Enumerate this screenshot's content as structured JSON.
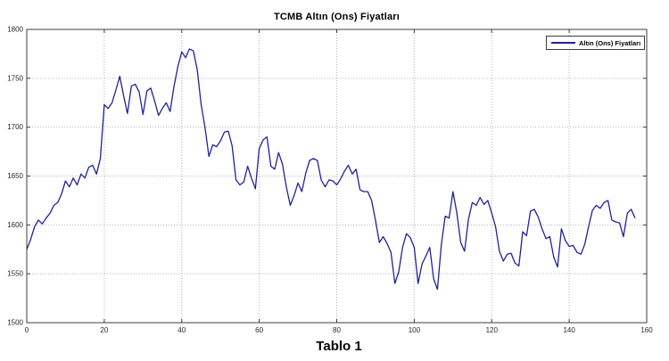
{
  "figure": {
    "caption": "Tablo 1"
  },
  "chart_data": {
    "type": "line",
    "title": "TCMB Altın (Ons) Fiyatları",
    "legend": [
      "Altın (Ons) Fiyatları"
    ],
    "legend_position": "top-right",
    "xlabel": "",
    "ylabel": "",
    "xlim": [
      0,
      160
    ],
    "ylim": [
      1500,
      1800
    ],
    "x_ticks": [
      0,
      20,
      40,
      60,
      80,
      100,
      120,
      140,
      160
    ],
    "y_ticks": [
      1500,
      1550,
      1600,
      1650,
      1700,
      1750,
      1800
    ],
    "grid": "dotted",
    "colors": {
      "line": "#21219b",
      "grid": "#b4b4b4",
      "axis": "#3c3c3c",
      "tick_label": "#262626",
      "plot_bg": "#ffffff"
    },
    "series": [
      {
        "name": "Altın (Ons) Fiyatları",
        "color": "#21219b",
        "x_start": 0,
        "x_step": 1,
        "values": [
          1575,
          1585,
          1598,
          1605,
          1601,
          1607,
          1612,
          1620,
          1623,
          1632,
          1645,
          1639,
          1648,
          1641,
          1652,
          1648,
          1659,
          1661,
          1652,
          1668,
          1723,
          1719,
          1725,
          1738,
          1752,
          1732,
          1714,
          1742,
          1744,
          1736,
          1713,
          1737,
          1740,
          1727,
          1712,
          1719,
          1725,
          1716,
          1742,
          1762,
          1777,
          1771,
          1780,
          1778,
          1759,
          1723,
          1700,
          1670,
          1682,
          1680,
          1686,
          1695,
          1696,
          1681,
          1646,
          1641,
          1644,
          1660,
          1648,
          1637,
          1678,
          1687,
          1690,
          1660,
          1657,
          1674,
          1662,
          1639,
          1620,
          1630,
          1643,
          1634,
          1653,
          1666,
          1668,
          1666,
          1646,
          1639,
          1646,
          1645,
          1641,
          1647,
          1655,
          1661,
          1652,
          1657,
          1636,
          1634,
          1634,
          1625,
          1605,
          1582,
          1588,
          1581,
          1572,
          1540,
          1552,
          1577,
          1591,
          1587,
          1577,
          1540,
          1560,
          1568,
          1577,
          1545,
          1534,
          1580,
          1609,
          1607,
          1634,
          1612,
          1582,
          1573,
          1606,
          1623,
          1620,
          1628,
          1621,
          1625,
          1612,
          1598,
          1573,
          1563,
          1570,
          1571,
          1561,
          1558,
          1593,
          1589,
          1614,
          1616,
          1608,
          1596,
          1586,
          1588,
          1567,
          1557,
          1596,
          1584,
          1578,
          1579,
          1572,
          1570,
          1580,
          1598,
          1615,
          1620,
          1617,
          1623,
          1625,
          1605,
          1603,
          1602,
          1588,
          1612,
          1616,
          1607
        ]
      }
    ]
  }
}
